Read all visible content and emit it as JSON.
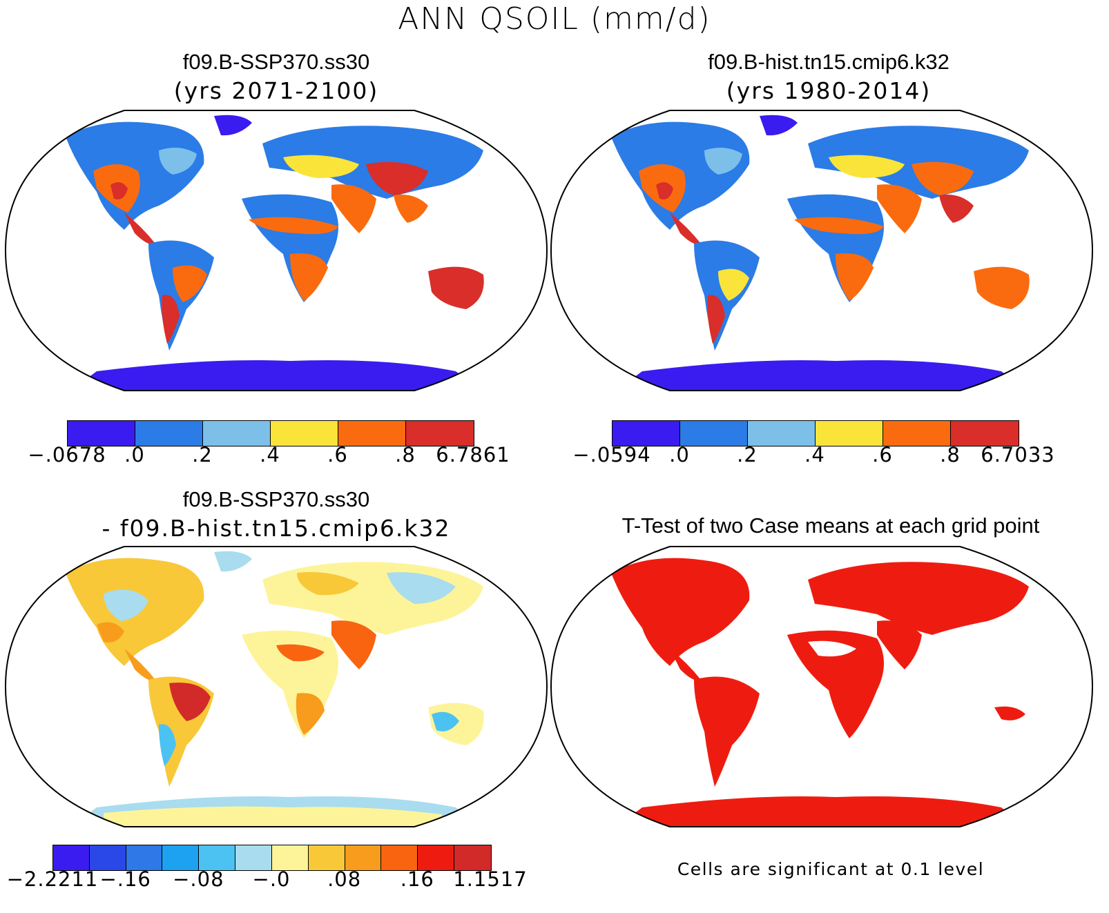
{
  "main_title": "ANN QSOIL (mm/d)",
  "panels": [
    {
      "id": "ssp370",
      "title": "f09.B-SSP370.ss30",
      "subtitle": "(yrs 2071-2100)",
      "colorbar": {
        "colors": [
          "#3a1cf0",
          "#2b7ce6",
          "#7cc0ea",
          "#fbe43a",
          "#fa6b0f",
          "#d92e2a"
        ],
        "ticks": [
          "-.0678",
          ".0",
          ".2",
          ".4",
          ".6",
          ".8",
          "6.7861"
        ]
      }
    },
    {
      "id": "hist",
      "title": "f09.B-hist.tn15.cmip6.k32",
      "subtitle": "(yrs 1980-2014)",
      "colorbar": {
        "colors": [
          "#3a1cf0",
          "#2b7ce6",
          "#7cc0ea",
          "#fbe43a",
          "#fa6b0f",
          "#d92e2a"
        ],
        "ticks": [
          "-.0594",
          ".0",
          ".2",
          ".4",
          ".6",
          ".8",
          "6.7033"
        ]
      }
    },
    {
      "id": "diff",
      "title": "f09.B-SSP370.ss30",
      "subtitle": "- f09.B-hist.tn15.cmip6.k32",
      "colorbar": {
        "colors": [
          "#3a1cf0",
          "#2a48e8",
          "#2e78e8",
          "#1da2f2",
          "#4cc2f2",
          "#a9dcee",
          "#fdf49a",
          "#f8c838",
          "#f79c1c",
          "#f96410",
          "#ee1c10",
          "#d22a28"
        ],
        "ticks": [
          "-2.2211",
          "-.16",
          "-.08",
          "-.0",
          ".08",
          ".16",
          "1.1517"
        ]
      }
    },
    {
      "id": "ttest",
      "title": "T-Test of two Case means at each grid point",
      "note": "Cells are significant at 0.1 level"
    }
  ]
}
